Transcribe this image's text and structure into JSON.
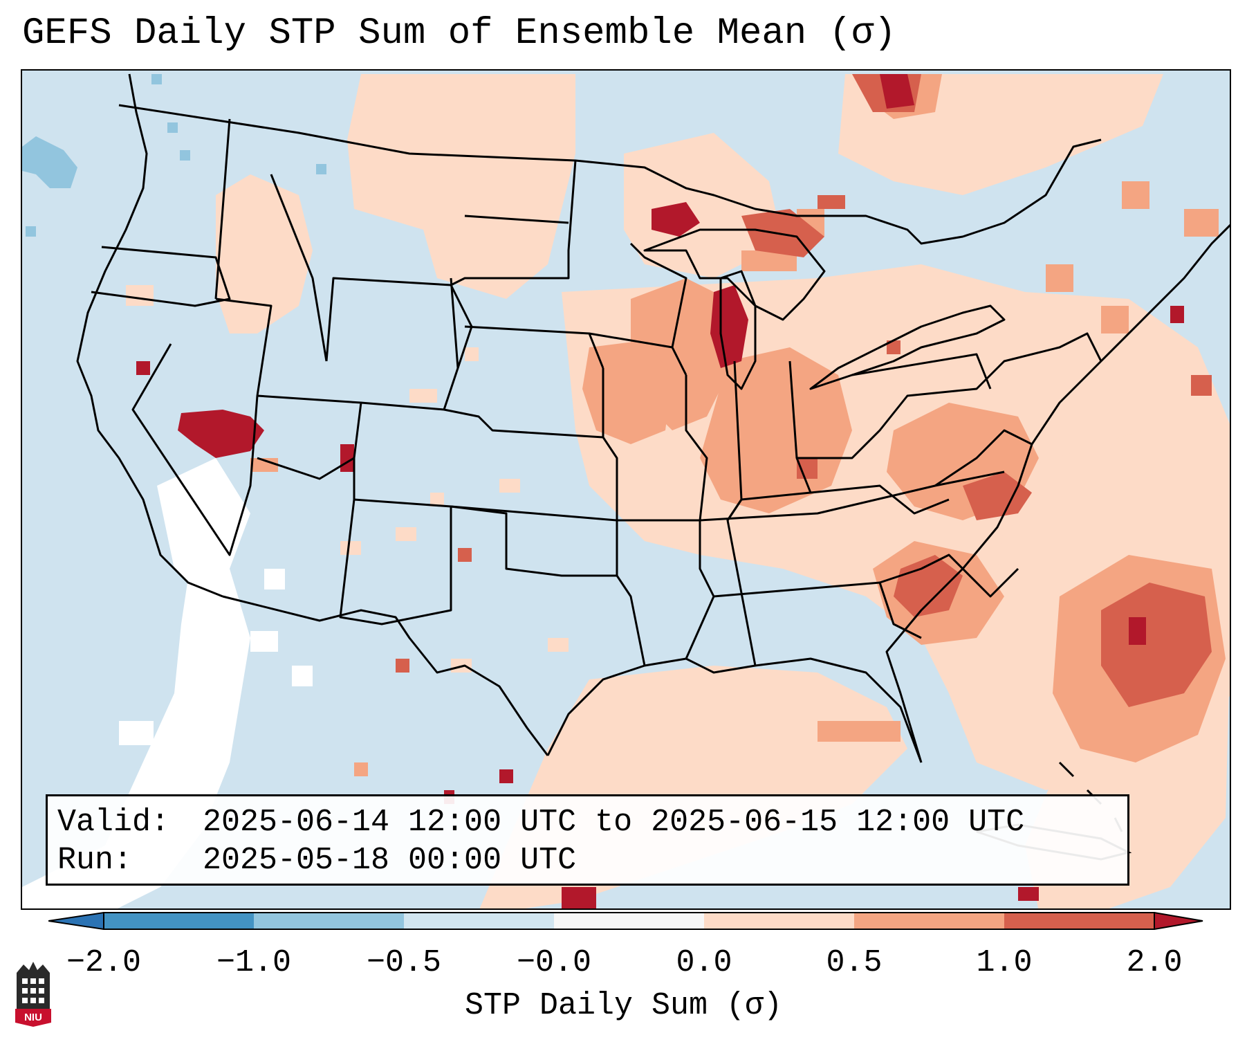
{
  "title": "GEFS Daily STP Sum of Ensemble Mean (σ)",
  "info": {
    "valid_label": "Valid:",
    "valid_value": "2025-06-14 12:00 UTC to 2025-06-15 12:00 UTC",
    "run_label": "Run:",
    "run_value": "2025-05-18 00:00 UTC"
  },
  "colorbar": {
    "label": "STP Daily Sum (σ)",
    "ticks": [
      "−2.0",
      "−1.0",
      "−0.5",
      "−0.0",
      "0.0",
      "0.5",
      "1.0",
      "2.0"
    ],
    "bins": [
      {
        "range": "< -2.0",
        "color": "#2b73b4"
      },
      {
        "range": "-2.0 to -1.0",
        "color": "#4393c3"
      },
      {
        "range": "-1.0 to -0.5",
        "color": "#92c5de"
      },
      {
        "range": "-0.5 to -0.0",
        "color": "#d1e5f0"
      },
      {
        "range": "-0.0 to 0.0",
        "color": "#f7f7f7"
      },
      {
        "range": "0.0 to 0.5",
        "color": "#fddbc7"
      },
      {
        "range": "0.5 to 1.0",
        "color": "#f4a582"
      },
      {
        "range": "1.0 to 2.0",
        "color": "#d6604d"
      },
      {
        "range": "> 2.0",
        "color": "#b2182b"
      }
    ]
  },
  "map": {
    "background_color": "#d1e5f0",
    "region": "Continental United States",
    "anomaly_areas": [
      {
        "region": "Great Lakes / Lower Michigan",
        "sigma": 2.0
      },
      {
        "region": "Western Nevada",
        "sigma": 2.0
      },
      {
        "region": "Georgia / South Carolina",
        "sigma": 1.0
      },
      {
        "region": "Western Atlantic offshore",
        "sigma": 1.0
      },
      {
        "region": "Ohio Valley / Mid-Atlantic",
        "sigma": 0.5
      },
      {
        "region": "Northern Plains / Dakotas",
        "sigma": 0.5
      },
      {
        "region": "Southwest Mexico coast",
        "sigma": -0.0
      }
    ]
  },
  "logo": {
    "text": "NIU"
  }
}
